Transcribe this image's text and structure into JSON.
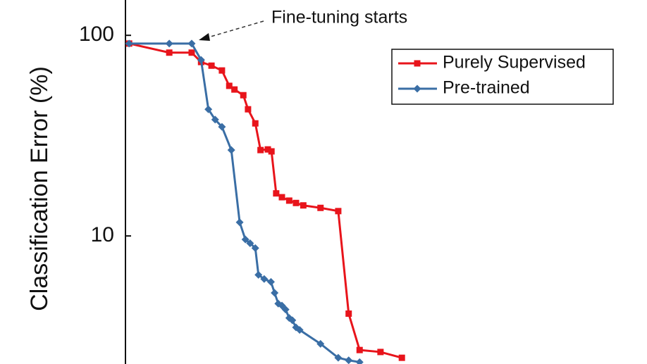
{
  "chart_data": {
    "type": "line",
    "annotation": "Fine-tuning starts",
    "y_label": "Classification Error (%)",
    "ylog": true,
    "ylim": [
      2.3,
      150
    ],
    "yticks": [
      10,
      100
    ],
    "xlim": [
      0,
      100
    ],
    "legend": "upper right",
    "series": [
      {
        "name": "Purely Supervised",
        "color": "#e8141b",
        "marker": "square",
        "x": [
          0.7,
          8.4,
          12.7,
          14.5,
          16.5,
          18.5,
          19.9,
          20.9,
          22.6,
          23.5,
          24.9,
          25.9,
          27.3,
          28,
          28.9,
          30,
          31.4,
          32.7,
          34.1,
          37.4,
          40.8,
          42.8,
          44.9,
          48.9,
          53
        ],
        "values": [
          91,
          82,
          82,
          73.6,
          70.6,
          66.8,
          56,
          53.7,
          50.3,
          42.8,
          36.4,
          26.8,
          27,
          26.4,
          16.3,
          15.6,
          15,
          14.6,
          14.2,
          13.8,
          13.3,
          4.1,
          2.7,
          2.64,
          2.47
        ]
      },
      {
        "name": "Pre-trained",
        "color": "#3a6ea5",
        "marker": "diamond",
        "x": [
          0.7,
          8.4,
          12.7,
          14.5,
          15.9,
          17.2,
          18.5,
          20.3,
          21.9,
          23,
          23.9,
          24.9,
          25.5,
          26.6,
          27.9,
          28.6,
          29.3,
          30,
          30.7,
          31.4,
          32,
          32.7,
          33.4,
          37.4,
          40.8,
          42.8,
          44.9
        ],
        "values": [
          91,
          91,
          91,
          75.4,
          42.8,
          38,
          35,
          26.8,
          11.7,
          9.6,
          9.2,
          8.7,
          6.4,
          6.1,
          5.9,
          5.2,
          4.6,
          4.5,
          4.3,
          3.9,
          3.8,
          3.5,
          3.4,
          2.9,
          2.47,
          2.4,
          2.35
        ]
      }
    ]
  }
}
